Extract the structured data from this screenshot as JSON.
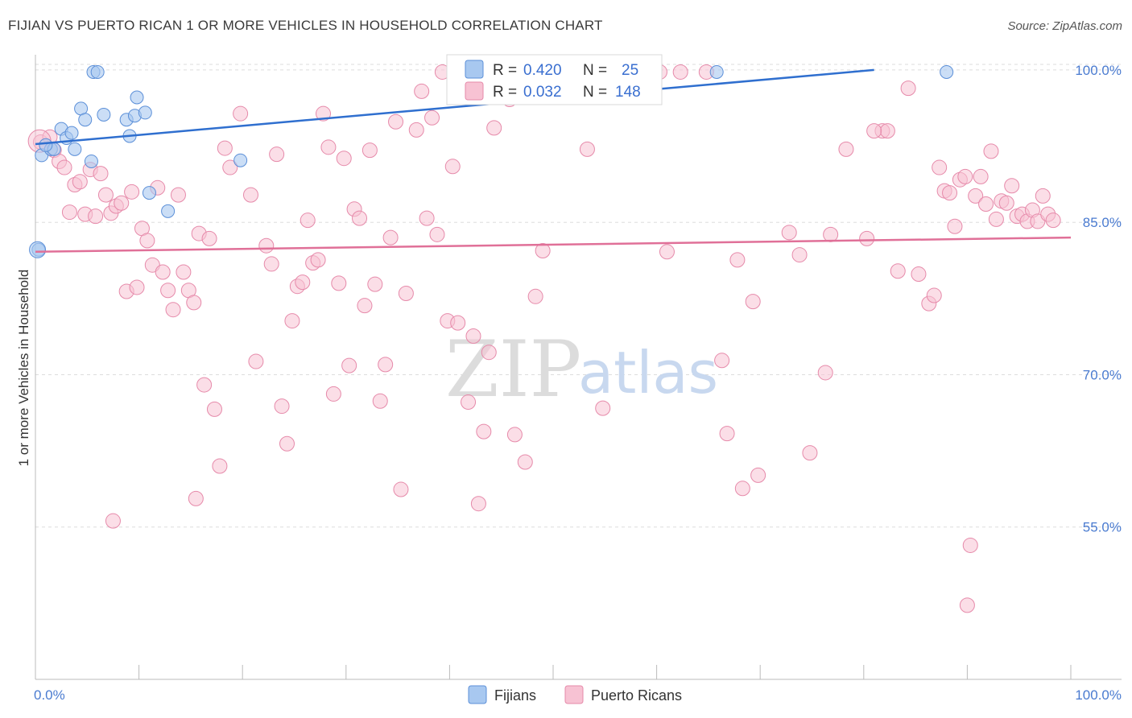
{
  "header": {
    "title": "FIJIAN VS PUERTO RICAN 1 OR MORE VEHICLES IN HOUSEHOLD CORRELATION CHART",
    "source": "Source: ZipAtlas.com"
  },
  "watermark": {
    "zip": "ZIP",
    "atlas": "atlas"
  },
  "legend": {
    "rows": [
      {
        "r_label": "R =",
        "r_value": "0.420",
        "n_label": "N =",
        "n_value": "25",
        "color": "#a8c8f0"
      },
      {
        "r_label": "R =",
        "r_value": "0.032",
        "n_label": "N =",
        "n_value": "148",
        "color": "#f5b8cc"
      }
    ]
  },
  "colors": {
    "fijians_fill": "#a8c8f0",
    "fijians_stroke": "#5b8fd8",
    "fijians_line": "#2f6fcf",
    "pr_fill": "#f7c2d3",
    "pr_stroke": "#e68aaa",
    "pr_line": "#e07098",
    "grid": "#dddddd",
    "tick_label": "#4a7bd0"
  },
  "chart_data": {
    "type": "scatter",
    "title": "FIJIAN VS PUERTO RICAN 1 OR MORE VEHICLES IN HOUSEHOLD CORRELATION CHART",
    "ylabel": "1 or more Vehicles in Household",
    "xlabel": "",
    "xlim": [
      0,
      100
    ],
    "ylim": [
      40,
      101.5
    ],
    "x_tick_labels": [
      "0.0%",
      "100.0%"
    ],
    "y_ticks": [
      55,
      70,
      85,
      100
    ],
    "y_tick_labels": [
      "55.0%",
      "70.0%",
      "85.0%",
      "100.0%"
    ],
    "grid": true,
    "legend_position": "top-center",
    "series": [
      {
        "name": "Fijians",
        "trend": {
          "x": [
            0,
            81
          ],
          "y": [
            92.7,
            100.0
          ]
        },
        "points": [
          [
            0.3,
            82.3
          ],
          [
            0.6,
            91.6
          ],
          [
            1.5,
            92.2
          ],
          [
            1.8,
            92.2
          ],
          [
            2.5,
            94.2
          ],
          [
            3.0,
            93.3
          ],
          [
            3.8,
            92.2
          ],
          [
            4.4,
            96.2
          ],
          [
            4.8,
            95.1
          ],
          [
            5.4,
            91.0
          ],
          [
            5.6,
            99.8
          ],
          [
            6.0,
            99.8
          ],
          [
            6.6,
            95.6
          ],
          [
            8.8,
            95.1
          ],
          [
            9.1,
            93.5
          ],
          [
            9.6,
            95.5
          ],
          [
            9.8,
            97.3
          ],
          [
            10.6,
            95.8
          ],
          [
            11.0,
            87.9
          ],
          [
            12.8,
            86.1
          ],
          [
            19.8,
            91.1
          ],
          [
            65.8,
            99.8
          ],
          [
            88.0,
            99.8
          ],
          [
            1.0,
            92.6
          ],
          [
            3.5,
            93.8
          ]
        ]
      },
      {
        "name": "Puerto Ricans",
        "trend": {
          "x": [
            0,
            100
          ],
          "y": [
            82.1,
            83.5
          ]
        },
        "points": [
          [
            0.5,
            92.9
          ],
          [
            1.4,
            93.4
          ],
          [
            1.8,
            92.1
          ],
          [
            2.3,
            91.0
          ],
          [
            2.8,
            90.4
          ],
          [
            3.3,
            86.0
          ],
          [
            3.8,
            88.7
          ],
          [
            4.3,
            89.0
          ],
          [
            4.8,
            85.8
          ],
          [
            5.3,
            90.2
          ],
          [
            5.8,
            85.6
          ],
          [
            6.3,
            89.8
          ],
          [
            6.8,
            87.7
          ],
          [
            7.3,
            85.9
          ],
          [
            7.8,
            86.6
          ],
          [
            8.3,
            86.9
          ],
          [
            8.8,
            78.2
          ],
          [
            9.3,
            88.0
          ],
          [
            9.8,
            78.6
          ],
          [
            10.3,
            84.4
          ],
          [
            10.8,
            83.2
          ],
          [
            11.3,
            80.8
          ],
          [
            11.8,
            88.4
          ],
          [
            12.3,
            80.1
          ],
          [
            12.8,
            78.3
          ],
          [
            13.3,
            76.4
          ],
          [
            13.8,
            87.7
          ],
          [
            14.3,
            80.1
          ],
          [
            14.8,
            78.3
          ],
          [
            15.3,
            77.1
          ],
          [
            15.8,
            83.9
          ],
          [
            16.3,
            69.0
          ],
          [
            16.8,
            83.4
          ],
          [
            17.3,
            66.6
          ],
          [
            17.8,
            61.0
          ],
          [
            18.3,
            92.3
          ],
          [
            18.8,
            90.4
          ],
          [
            19.8,
            95.7
          ],
          [
            20.8,
            87.7
          ],
          [
            21.3,
            71.3
          ],
          [
            22.3,
            82.7
          ],
          [
            22.8,
            80.9
          ],
          [
            23.3,
            91.7
          ],
          [
            23.8,
            66.9
          ],
          [
            24.3,
            63.2
          ],
          [
            24.8,
            75.3
          ],
          [
            25.3,
            78.7
          ],
          [
            25.8,
            79.1
          ],
          [
            26.3,
            85.2
          ],
          [
            26.8,
            81.0
          ],
          [
            27.3,
            81.3
          ],
          [
            27.8,
            95.7
          ],
          [
            28.3,
            92.4
          ],
          [
            28.8,
            68.1
          ],
          [
            29.3,
            79.0
          ],
          [
            29.8,
            91.3
          ],
          [
            30.3,
            70.9
          ],
          [
            30.8,
            86.3
          ],
          [
            31.3,
            85.4
          ],
          [
            31.8,
            76.8
          ],
          [
            32.3,
            92.1
          ],
          [
            32.8,
            78.9
          ],
          [
            33.3,
            67.4
          ],
          [
            33.8,
            71.0
          ],
          [
            34.3,
            83.5
          ],
          [
            34.8,
            94.9
          ],
          [
            35.3,
            58.7
          ],
          [
            35.8,
            78.0
          ],
          [
            36.8,
            94.1
          ],
          [
            37.3,
            97.9
          ],
          [
            37.8,
            85.4
          ],
          [
            38.3,
            95.3
          ],
          [
            38.8,
            83.8
          ],
          [
            39.3,
            99.8
          ],
          [
            39.8,
            75.3
          ],
          [
            40.3,
            90.5
          ],
          [
            40.8,
            75.1
          ],
          [
            41.3,
            99.5
          ],
          [
            41.8,
            67.3
          ],
          [
            42.3,
            73.8
          ],
          [
            42.8,
            57.3
          ],
          [
            43.3,
            64.4
          ],
          [
            43.8,
            72.2
          ],
          [
            44.3,
            94.3
          ],
          [
            44.8,
            99.8
          ],
          [
            45.3,
            99.8
          ],
          [
            45.8,
            97.1
          ],
          [
            46.3,
            64.1
          ],
          [
            46.8,
            99.8
          ],
          [
            47.3,
            61.4
          ],
          [
            48.3,
            77.7
          ],
          [
            53.3,
            92.2
          ],
          [
            54.8,
            66.7
          ],
          [
            55.3,
            99.8
          ],
          [
            58.8,
            99.8
          ],
          [
            59.8,
            99.8
          ],
          [
            60.3,
            99.8
          ],
          [
            62.3,
            99.8
          ],
          [
            64.8,
            99.8
          ],
          [
            66.3,
            71.4
          ],
          [
            66.8,
            64.2
          ],
          [
            67.8,
            81.3
          ],
          [
            68.3,
            58.8
          ],
          [
            69.3,
            77.2
          ],
          [
            69.8,
            60.1
          ],
          [
            72.8,
            84.0
          ],
          [
            73.8,
            81.8
          ],
          [
            74.8,
            62.3
          ],
          [
            76.3,
            70.2
          ],
          [
            76.8,
            83.8
          ],
          [
            78.3,
            92.2
          ],
          [
            80.3,
            83.4
          ],
          [
            81.8,
            94.0
          ],
          [
            82.3,
            94.0
          ],
          [
            83.3,
            80.2
          ],
          [
            84.3,
            98.2
          ],
          [
            85.3,
            79.9
          ],
          [
            86.3,
            77.0
          ],
          [
            86.8,
            77.8
          ],
          [
            87.3,
            90.4
          ],
          [
            87.8,
            88.1
          ],
          [
            88.3,
            87.9
          ],
          [
            88.8,
            84.6
          ],
          [
            89.3,
            89.2
          ],
          [
            89.8,
            89.5
          ],
          [
            90.3,
            53.2
          ],
          [
            90.8,
            87.6
          ],
          [
            91.3,
            89.5
          ],
          [
            91.8,
            86.8
          ],
          [
            92.3,
            92.0
          ],
          [
            92.8,
            85.3
          ],
          [
            93.3,
            87.1
          ],
          [
            93.8,
            86.9
          ],
          [
            94.3,
            88.6
          ],
          [
            94.8,
            85.6
          ],
          [
            95.3,
            85.8
          ],
          [
            95.8,
            85.1
          ],
          [
            96.3,
            86.2
          ],
          [
            96.8,
            85.1
          ],
          [
            97.3,
            87.6
          ],
          [
            97.8,
            85.8
          ],
          [
            98.3,
            85.2
          ],
          [
            90.0,
            47.3
          ],
          [
            7.5,
            55.6
          ],
          [
            15.5,
            57.8
          ],
          [
            81.0,
            94.0
          ],
          [
            61.0,
            82.1
          ],
          [
            49.0,
            82.2
          ]
        ]
      }
    ]
  },
  "bottom_legend": {
    "items": [
      {
        "label": "Fijians",
        "color": "#a8c8f0"
      },
      {
        "label": "Puerto Ricans",
        "color": "#f7c2d3"
      }
    ]
  }
}
